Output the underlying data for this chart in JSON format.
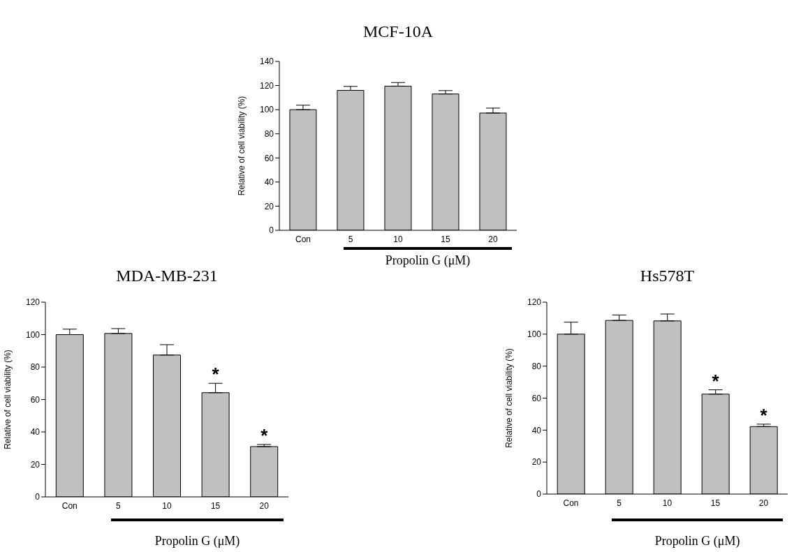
{
  "chart_data": [
    {
      "type": "bar",
      "title": "MCF-10A",
      "categories": [
        "Con",
        "5",
        "10",
        "15",
        "20"
      ],
      "values": [
        100,
        116,
        119.5,
        113,
        97.2
      ],
      "color": "#c0c0c0",
      "errors": [
        [
          100,
          103.7
        ],
        [
          116,
          119.3
        ],
        [
          119.5,
          122.5
        ],
        [
          113,
          115.8
        ],
        [
          97.2,
          101.3
        ]
      ],
      "ylim": [
        0,
        140
      ],
      "yticks": [
        0,
        20,
        40,
        60,
        80,
        100,
        120,
        140
      ],
      "xlabel": "Propolin G (μM)",
      "ylabel": "Relative of cell viability (%)"
    },
    {
      "type": "bar",
      "title": "MDA-MB-231",
      "categories": [
        "Con",
        "5",
        "10",
        "15",
        "20"
      ],
      "values": [
        100,
        100.7,
        87.4,
        64.2,
        31
      ],
      "color": "#c0c0c0",
      "errors": [
        [
          100,
          103.4
        ],
        [
          100.7,
          103.7
        ],
        [
          87.4,
          93.8
        ],
        [
          64.2,
          70
        ],
        [
          31,
          32.3
        ]
      ],
      "ylim": [
        0,
        120
      ],
      "yticks": [
        0,
        20,
        40,
        60,
        80,
        100,
        120
      ],
      "xlabel": "Propolin G (μM)",
      "ylabel": "Relative of cell viability (%)",
      "annotations": [
        {
          "text": "*",
          "x": "15",
          "y": 64.2
        },
        {
          "text": "*",
          "x": "20",
          "y": 31
        }
      ]
    },
    {
      "type": "bar",
      "title": "Hs578T",
      "categories": [
        "Con",
        "5",
        "10",
        "15",
        "20"
      ],
      "values": [
        100,
        108.6,
        108.3,
        62.5,
        42.2
      ],
      "color": "#c0c0c0",
      "errors": [
        [
          100,
          107.5
        ],
        [
          108.6,
          112
        ],
        [
          108.3,
          112.6
        ],
        [
          62.5,
          65.2
        ],
        [
          42.2,
          43.7
        ]
      ],
      "ylim": [
        0,
        120
      ],
      "yticks": [
        0,
        20,
        40,
        60,
        80,
        100,
        120
      ],
      "xlabel": "Propolin G (μM)",
      "ylabel": "Relative of cell viability (%)",
      "annotations": [
        {
          "text": "*",
          "x": "15",
          "y": 62.5
        },
        {
          "text": "*",
          "x": "20",
          "y": 42.2
        }
      ]
    }
  ]
}
